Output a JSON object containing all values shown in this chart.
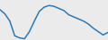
{
  "x": [
    0,
    1,
    2,
    3,
    4,
    5,
    6,
    7,
    8,
    9,
    10,
    11,
    12,
    13,
    14,
    15,
    16,
    17,
    18,
    19,
    20,
    21,
    22
  ],
  "y": [
    72,
    62,
    45,
    10,
    5,
    3,
    20,
    45,
    68,
    78,
    82,
    80,
    75,
    70,
    60,
    55,
    50,
    45,
    38,
    28,
    20,
    12,
    18
  ],
  "line_color": "#2a7ab5",
  "linewidth": 1.1,
  "background_color": "#ebebeb",
  "ylim": [
    0,
    95
  ],
  "xlim": [
    0,
    22
  ]
}
